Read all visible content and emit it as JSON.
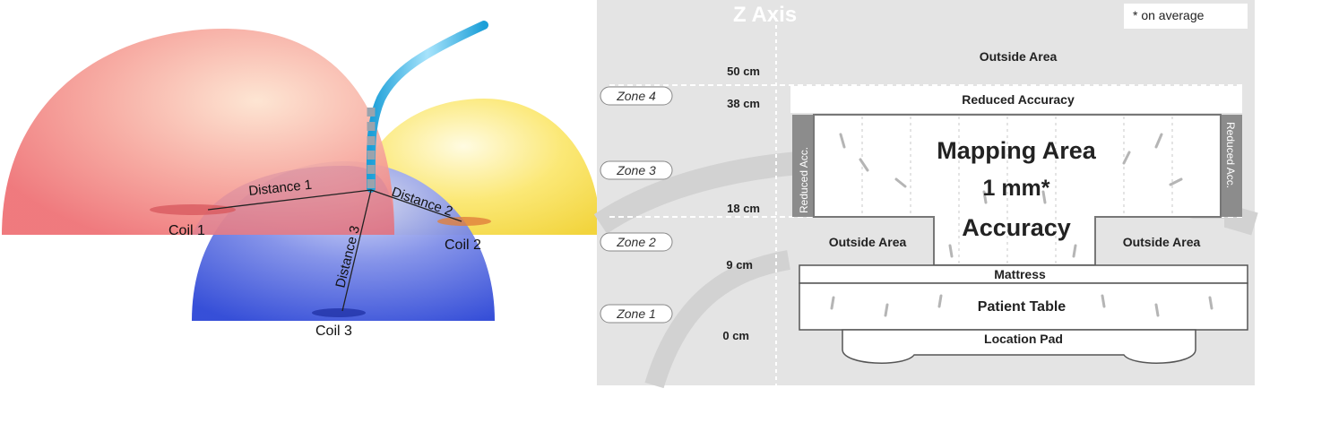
{
  "left_diagram": {
    "coils": [
      "Coil 1",
      "Coil 2",
      "Coil 3"
    ],
    "distances": [
      "Distance 1",
      "Distance 2",
      "Distance 3"
    ]
  },
  "right_diagram": {
    "axis_title": "Z Axis",
    "note": "* on average",
    "zones": [
      "Zone 4",
      "Zone 3",
      "Zone 2",
      "Zone 1"
    ],
    "heights": [
      "50 cm",
      "38 cm",
      "18 cm",
      "9 cm",
      "0 cm"
    ],
    "outside_area_top": "Outside Area",
    "reduced_accuracy": "Reduced Accuracy",
    "reduced_acc_side": "Reduced Acc.",
    "mapping_line1": "Mapping Area",
    "mapping_line2": "1 mm*",
    "mapping_line3": "Accuracy",
    "outside_area_left": "Outside Area",
    "outside_area_right": "Outside Area",
    "mattress": "Mattress",
    "patient_table": "Patient Table",
    "location_pad": "Location Pad"
  }
}
